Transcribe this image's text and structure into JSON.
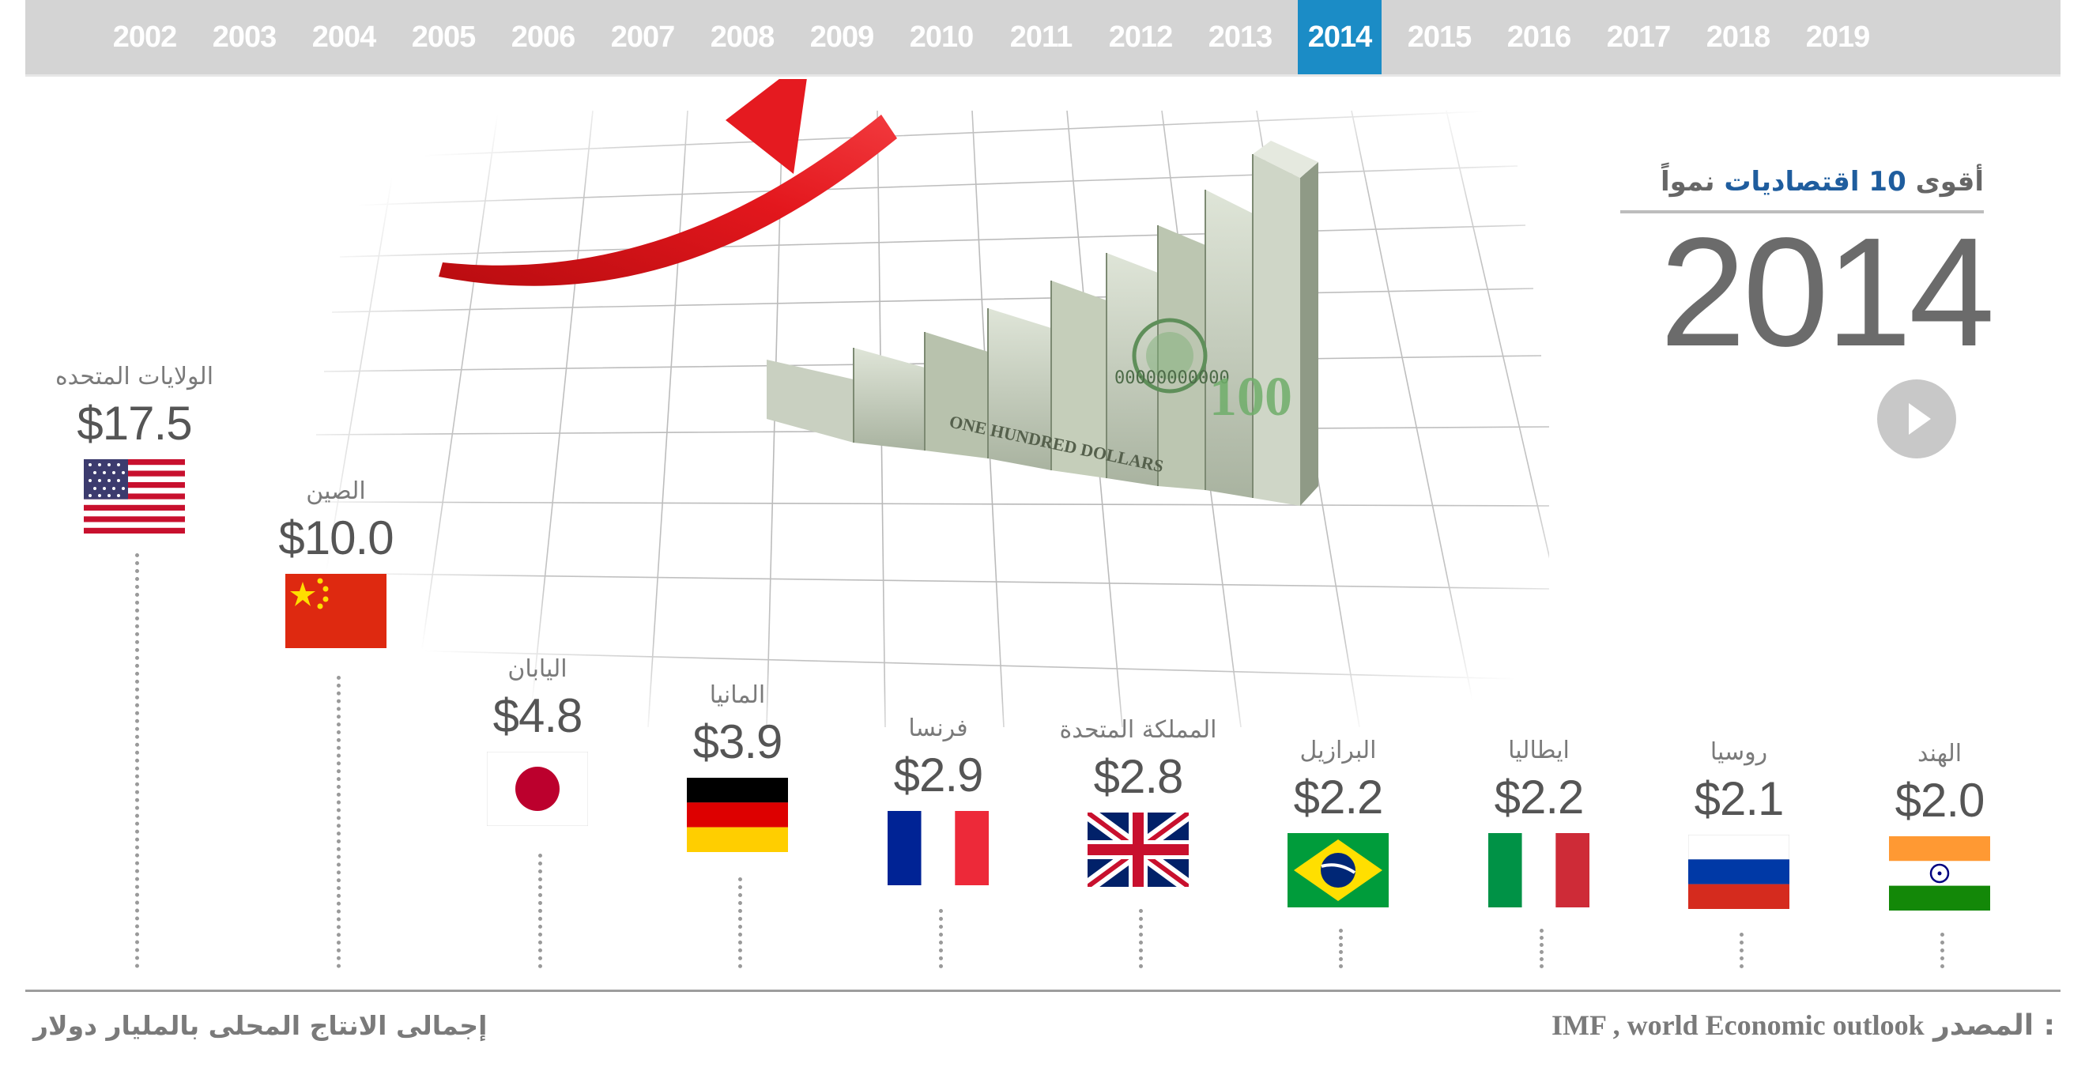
{
  "timeline": {
    "years": [
      "2002",
      "2003",
      "2004",
      "2005",
      "2006",
      "2007",
      "2008",
      "2009",
      "2010",
      "2011",
      "2012",
      "2013",
      "2014",
      "2015",
      "2016",
      "2017",
      "2018",
      "2019"
    ],
    "active_year": "2014"
  },
  "header": {
    "title_prefix": "أقوى",
    "title_number": "10",
    "title_highlight": "اقتصاديات",
    "title_suffix": "نمواً",
    "big_year": "2014"
  },
  "banknote": {
    "serial": "00000000000",
    "denomination": "100",
    "text": "ONE HUNDRED DOLLARS"
  },
  "countries": [
    {
      "name": "الولايات المتحده",
      "value": "$17.5",
      "flag": "usa-flag"
    },
    {
      "name": "الصين",
      "value": "$10.0",
      "flag": "china-flag"
    },
    {
      "name": "اليابان",
      "value": "$4.8",
      "flag": "japan-flag"
    },
    {
      "name": "المانيا",
      "value": "$3.9",
      "flag": "germany-flag"
    },
    {
      "name": "فرنسا",
      "value": "$2.9",
      "flag": "france-flag"
    },
    {
      "name": "المملكة المتحدة",
      "value": "$2.8",
      "flag": "uk-flag"
    },
    {
      "name": "البرازيل",
      "value": "$2.2",
      "flag": "brazil-flag"
    },
    {
      "name": "ايطاليا",
      "value": "$2.2",
      "flag": "italy-flag"
    },
    {
      "name": "روسيا",
      "value": "$2.1",
      "flag": "russia-flag"
    },
    {
      "name": "الهند",
      "value": "$2.0",
      "flag": "india-flag"
    }
  ],
  "footer": {
    "caption": "إجمالى الانتاج المحلى بالمليار دولار",
    "source_label": "المصدر :",
    "source_text": "IMF , world Economic outlook"
  },
  "colors": {
    "tab_bar": "#d4d4d4",
    "active_tab": "#1b8cc6",
    "title_highlight": "#1f5d9e",
    "arrow": "#e0161c",
    "text_gray": "#7a7a7a"
  },
  "icons": {
    "play": "play-icon",
    "arrow": "growth-arrow-icon"
  }
}
